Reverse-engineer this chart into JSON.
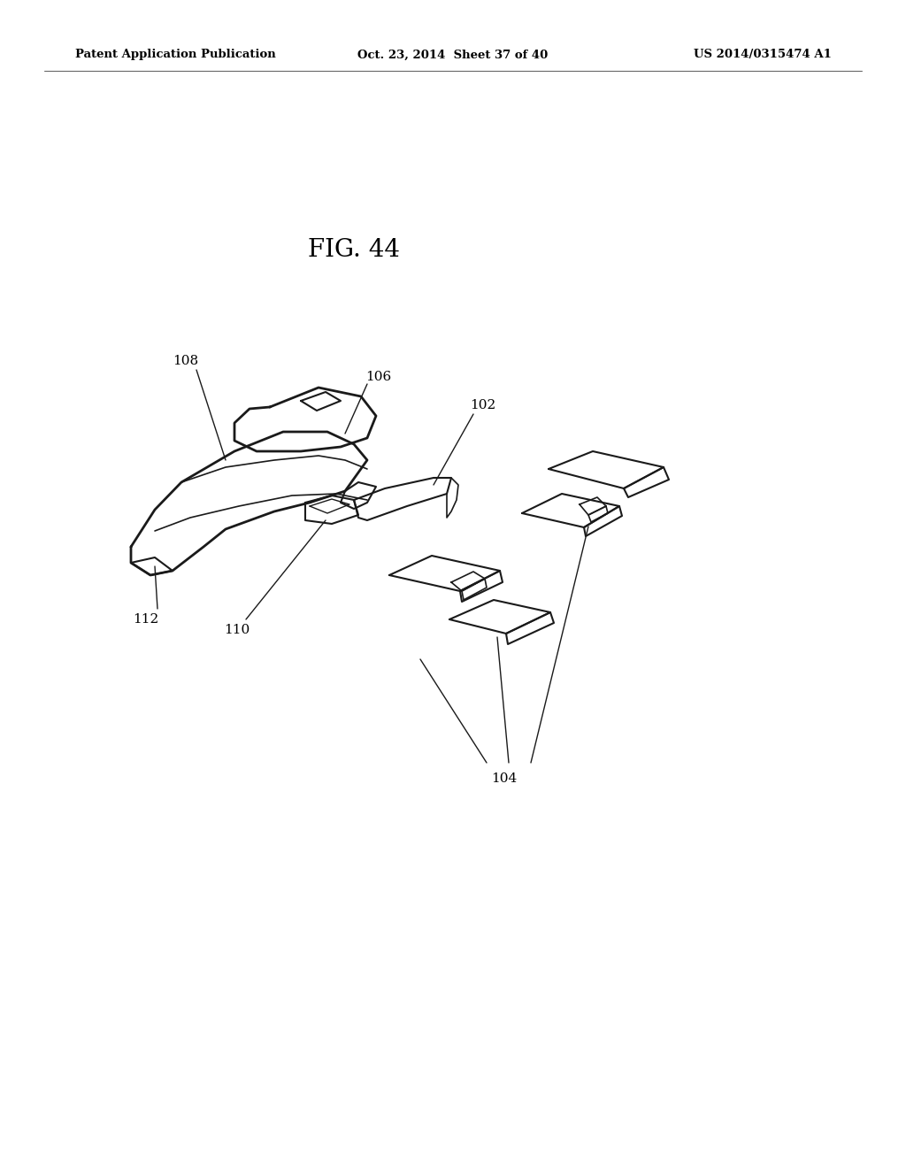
{
  "background_color": "#ffffff",
  "title": "FIG. 44",
  "header_left": "Patent Application Publication",
  "header_center": "Oct. 23, 2014  Sheet 37 of 40",
  "header_right": "US 2014/0315474 A1",
  "line_color": "#1a1a1a",
  "lw": 1.5
}
